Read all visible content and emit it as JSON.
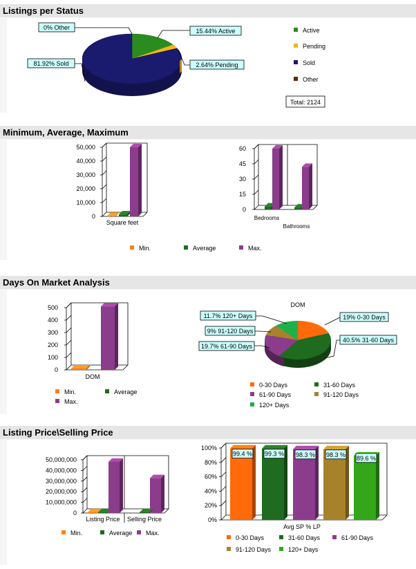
{
  "sections": {
    "status": "Listings per Status",
    "minavgmax": "Minimum, Average, Maximum",
    "dom": "Days On Market Analysis",
    "price": "Listing Price\\Selling Price"
  },
  "colors": {
    "active": "#2a8c1e",
    "pending": "#f0b81c",
    "sold": "#1a1a6e",
    "other": "#5a2a0a",
    "min": "#ff7f1a",
    "average": "#1f6b1f",
    "max": "#8c3c8c",
    "d0_30": "#ff6a0a",
    "d31_60": "#1f6b1f",
    "d61_90": "#8c3c8c",
    "d91_120": "#a8822a",
    "d120plus": "#1fb04a",
    "callout_bg": "#ccffff"
  },
  "chart_data": [
    {
      "id": "status-pie",
      "type": "pie",
      "slices": [
        {
          "label": "Active",
          "value": 15.44,
          "callout": "15.44%  Active"
        },
        {
          "label": "Pending",
          "value": 2.64,
          "callout": "2.64%  Pending"
        },
        {
          "label": "Sold",
          "value": 81.92,
          "callout": "81.92%  Sold"
        },
        {
          "label": "Other",
          "value": 0,
          "callout": "0%  Other"
        }
      ],
      "legend": [
        "Active",
        "Pending",
        "Sold",
        "Other"
      ],
      "total_label": "Total: 2124"
    },
    {
      "id": "sqft-bar",
      "type": "bar",
      "categories": [
        "Square feet"
      ],
      "series": [
        {
          "name": "Min.",
          "values": [
            400
          ]
        },
        {
          "name": "Average",
          "values": [
            1500
          ]
        },
        {
          "name": "Max.",
          "values": [
            52000
          ]
        }
      ],
      "yticks": [
        "50,000",
        "40,000",
        "30,000",
        "20,000",
        "10,000",
        "0"
      ],
      "ylim": [
        0,
        52000
      ]
    },
    {
      "id": "rooms-bar",
      "type": "bar",
      "categories": [
        "Bedrooms",
        "Bathrooms"
      ],
      "series": [
        {
          "name": "Min.",
          "values": [
            0,
            0
          ]
        },
        {
          "name": "Average",
          "values": [
            3,
            2
          ]
        },
        {
          "name": "Max.",
          "values": [
            60,
            42
          ]
        }
      ],
      "yticks": [
        "60",
        "45",
        "30",
        "15",
        "0"
      ],
      "ylim": [
        0,
        60
      ]
    },
    {
      "id": "minavgmax-legend",
      "legend": [
        "Min.",
        "Average",
        "Max."
      ]
    },
    {
      "id": "dom-bar",
      "type": "bar",
      "categories": [
        "DOM"
      ],
      "series": [
        {
          "name": "Min.",
          "values": [
            0
          ]
        },
        {
          "name": "Average",
          "values": [
            0
          ]
        },
        {
          "name": "Max.",
          "values": [
            510
          ]
        }
      ],
      "yticks": [
        "500",
        "400",
        "300",
        "200",
        "100",
        "0"
      ],
      "ylim": [
        0,
        500
      ],
      "legend": [
        "Min.",
        "Average",
        "Max."
      ]
    },
    {
      "id": "dom-pie",
      "type": "pie",
      "title": "DOM",
      "slices": [
        {
          "label": "0-30 Days",
          "value": 19,
          "callout": "19%  0-30 Days"
        },
        {
          "label": "31-60 Days",
          "value": 40.5,
          "callout": "40.5%  31-60 Days"
        },
        {
          "label": "61-90 Days",
          "value": 19.7,
          "callout": "19.7%  61-90 Days"
        },
        {
          "label": "91-120 Days",
          "value": 9,
          "callout": "9%  91-120 Days"
        },
        {
          "label": "120+ Days",
          "value": 11.7,
          "callout": "11.7%  120+ Days"
        }
      ],
      "legend": [
        "0-30 Days",
        "31-60 Days",
        "61-90 Days",
        "91-120 Days",
        "120+ Days"
      ]
    },
    {
      "id": "price-bar",
      "type": "bar",
      "categories": [
        "Listing Price",
        "Selling Price"
      ],
      "series": [
        {
          "name": "Min.",
          "values": [
            0,
            0
          ]
        },
        {
          "name": "Average",
          "values": [
            0,
            0
          ]
        },
        {
          "name": "Max.",
          "values": [
            50000000,
            34000000
          ]
        }
      ],
      "yticks": [
        "50,000,000",
        "40,000,000",
        "30,000,000",
        "20,000,000",
        "10,000,000",
        "0"
      ],
      "ylim": [
        0,
        52000000
      ],
      "legend": [
        "Min.",
        "Average",
        "Max."
      ]
    },
    {
      "id": "sp-lp-bar",
      "type": "bar",
      "xlabel": "Avg SP % LP",
      "categories": [
        "0-30 Days",
        "31-60 Days",
        "61-90 Days",
        "91-120 Days",
        "120+ Days"
      ],
      "values": [
        99.4,
        99.3,
        98.3,
        98.3,
        89.6
      ],
      "labels": [
        "99.4 %",
        "99.3 %",
        "98.3 %",
        "98.3 %",
        "89.6 %"
      ],
      "yticks": [
        "100%",
        "80%",
        "60%",
        "40%",
        "20%",
        "0%"
      ],
      "ylim": [
        0,
        100
      ],
      "legend": [
        "0-30 Days",
        "31-60 Days",
        "61-90 Days",
        "91-120 Days",
        "120+ Days"
      ]
    }
  ]
}
